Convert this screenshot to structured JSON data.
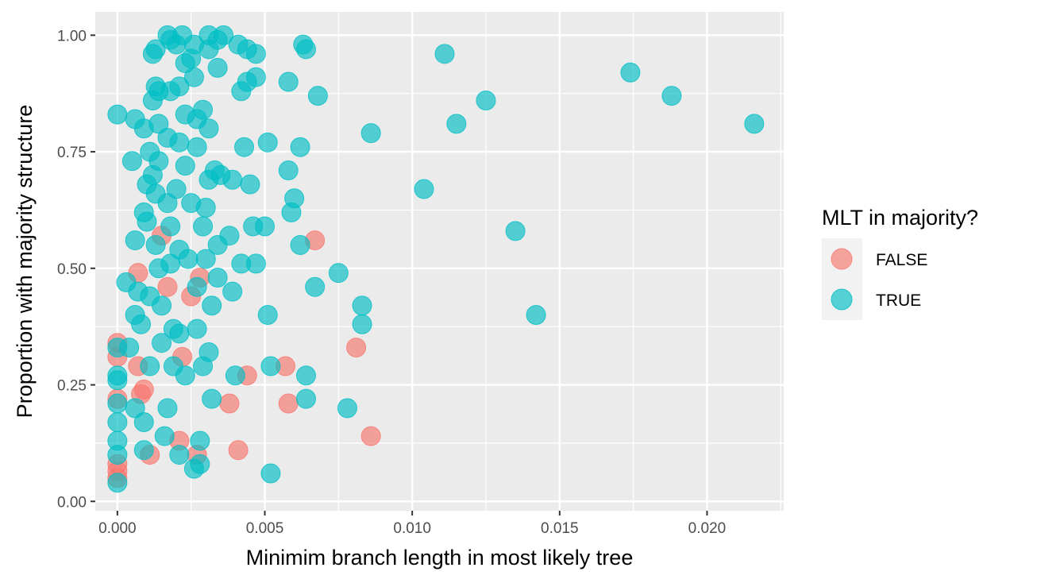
{
  "chart_data": {
    "type": "scatter",
    "title": "",
    "xlabel": "Minimim branch length in most likely tree",
    "ylabel": "Proportion with majority structure",
    "xlim": [
      -0.00075,
      0.0226
    ],
    "ylim": [
      -0.02,
      1.05
    ],
    "x_ticks": [
      0.0,
      0.005,
      0.01,
      0.015,
      0.02
    ],
    "x_tick_labels": [
      "0.000",
      "0.005",
      "0.010",
      "0.015",
      "0.020"
    ],
    "y_ticks": [
      0.0,
      0.25,
      0.5,
      0.75,
      1.0
    ],
    "y_tick_labels": [
      "0.00",
      "0.25",
      "0.50",
      "0.75",
      "1.00"
    ],
    "grid": true,
    "legend": {
      "title": "MLT in majority?",
      "position": "right",
      "entries": [
        "FALSE",
        "TRUE"
      ]
    },
    "series": [
      {
        "name": "FALSE",
        "color": "#F8766D",
        "points": [
          [
            0.0,
            0.34
          ],
          [
            0.0,
            0.31
          ],
          [
            0.0,
            0.22
          ],
          [
            0.0,
            0.08
          ],
          [
            0.0,
            0.065
          ],
          [
            0.0,
            0.05
          ],
          [
            0.0007,
            0.49
          ],
          [
            0.0007,
            0.29
          ],
          [
            0.0008,
            0.23
          ],
          [
            0.0009,
            0.24
          ],
          [
            0.0011,
            0.1
          ],
          [
            0.0015,
            0.57
          ],
          [
            0.0017,
            0.46
          ],
          [
            0.0021,
            0.13
          ],
          [
            0.0022,
            0.31
          ],
          [
            0.0025,
            0.44
          ],
          [
            0.0027,
            0.1
          ],
          [
            0.0028,
            0.48
          ],
          [
            0.0038,
            0.21
          ],
          [
            0.0041,
            0.11
          ],
          [
            0.0044,
            0.27
          ],
          [
            0.0057,
            0.29
          ],
          [
            0.0058,
            0.21
          ],
          [
            0.0067,
            0.56
          ],
          [
            0.0081,
            0.33
          ],
          [
            0.0086,
            0.14
          ]
        ]
      },
      {
        "name": "TRUE",
        "color": "#00BFC4",
        "points": [
          [
            0.0,
            0.83
          ],
          [
            0.0,
            0.33
          ],
          [
            0.0,
            0.27
          ],
          [
            0.0,
            0.26
          ],
          [
            0.0,
            0.21
          ],
          [
            0.0,
            0.17
          ],
          [
            0.0,
            0.13
          ],
          [
            0.0,
            0.1
          ],
          [
            0.0,
            0.04
          ],
          [
            0.0003,
            0.47
          ],
          [
            0.0004,
            0.33
          ],
          [
            0.0005,
            0.73
          ],
          [
            0.0006,
            0.82
          ],
          [
            0.0006,
            0.56
          ],
          [
            0.0006,
            0.4
          ],
          [
            0.0006,
            0.2
          ],
          [
            0.0007,
            0.45
          ],
          [
            0.0008,
            0.38
          ],
          [
            0.0009,
            0.8
          ],
          [
            0.0009,
            0.62
          ],
          [
            0.0009,
            0.17
          ],
          [
            0.0009,
            0.11
          ],
          [
            0.001,
            0.68
          ],
          [
            0.001,
            0.6
          ],
          [
            0.0011,
            0.75
          ],
          [
            0.0011,
            0.44
          ],
          [
            0.0011,
            0.29
          ],
          [
            0.0012,
            0.96
          ],
          [
            0.0012,
            0.86
          ],
          [
            0.0012,
            0.7
          ],
          [
            0.0013,
            0.97
          ],
          [
            0.0013,
            0.89
          ],
          [
            0.0013,
            0.66
          ],
          [
            0.0013,
            0.55
          ],
          [
            0.0014,
            0.88
          ],
          [
            0.0014,
            0.81
          ],
          [
            0.0014,
            0.73
          ],
          [
            0.0014,
            0.5
          ],
          [
            0.0015,
            0.42
          ],
          [
            0.0015,
            0.34
          ],
          [
            0.0016,
            0.14
          ],
          [
            0.0017,
            1.0
          ],
          [
            0.0017,
            0.78
          ],
          [
            0.0017,
            0.64
          ],
          [
            0.0017,
            0.2
          ],
          [
            0.0018,
            0.99
          ],
          [
            0.0018,
            0.88
          ],
          [
            0.0018,
            0.59
          ],
          [
            0.0018,
            0.51
          ],
          [
            0.0019,
            0.37
          ],
          [
            0.0019,
            0.29
          ],
          [
            0.002,
            0.98
          ],
          [
            0.002,
            0.67
          ],
          [
            0.0021,
            0.89
          ],
          [
            0.0021,
            0.77
          ],
          [
            0.0021,
            0.54
          ],
          [
            0.0021,
            0.36
          ],
          [
            0.0021,
            0.1
          ],
          [
            0.0022,
            1.0
          ],
          [
            0.0023,
            0.94
          ],
          [
            0.0023,
            0.83
          ],
          [
            0.0023,
            0.72
          ],
          [
            0.0023,
            0.27
          ],
          [
            0.0024,
            0.52
          ],
          [
            0.0025,
            0.95
          ],
          [
            0.0025,
            0.64
          ],
          [
            0.0026,
            0.98
          ],
          [
            0.0026,
            0.91
          ],
          [
            0.0026,
            0.07
          ],
          [
            0.0027,
            0.82
          ],
          [
            0.0027,
            0.76
          ],
          [
            0.0027,
            0.46
          ],
          [
            0.0027,
            0.37
          ],
          [
            0.0028,
            0.13
          ],
          [
            0.0028,
            0.08
          ],
          [
            0.0029,
            0.84
          ],
          [
            0.0029,
            0.59
          ],
          [
            0.0029,
            0.29
          ],
          [
            0.003,
            0.63
          ],
          [
            0.003,
            0.52
          ],
          [
            0.0031,
            1.0
          ],
          [
            0.0031,
            0.97
          ],
          [
            0.0031,
            0.8
          ],
          [
            0.0031,
            0.69
          ],
          [
            0.0031,
            0.32
          ],
          [
            0.0032,
            0.42
          ],
          [
            0.0032,
            0.22
          ],
          [
            0.0033,
            0.71
          ],
          [
            0.0034,
            0.99
          ],
          [
            0.0034,
            0.93
          ],
          [
            0.0034,
            0.55
          ],
          [
            0.0034,
            0.48
          ],
          [
            0.0035,
            0.7
          ],
          [
            0.0036,
            1.0
          ],
          [
            0.0038,
            0.57
          ],
          [
            0.0039,
            0.69
          ],
          [
            0.0039,
            0.45
          ],
          [
            0.004,
            0.27
          ],
          [
            0.0041,
            0.98
          ],
          [
            0.0042,
            0.88
          ],
          [
            0.0042,
            0.51
          ],
          [
            0.0043,
            0.76
          ],
          [
            0.0044,
            0.9
          ],
          [
            0.0044,
            0.97
          ],
          [
            0.0045,
            0.68
          ],
          [
            0.0046,
            0.59
          ],
          [
            0.0047,
            0.96
          ],
          [
            0.0047,
            0.91
          ],
          [
            0.0047,
            0.51
          ],
          [
            0.005,
            0.59
          ],
          [
            0.0051,
            0.77
          ],
          [
            0.0051,
            0.4
          ],
          [
            0.0052,
            0.29
          ],
          [
            0.0052,
            0.06
          ],
          [
            0.0058,
            0.9
          ],
          [
            0.0058,
            0.71
          ],
          [
            0.0059,
            0.62
          ],
          [
            0.006,
            0.65
          ],
          [
            0.0062,
            0.76
          ],
          [
            0.0062,
            0.55
          ],
          [
            0.0063,
            0.98
          ],
          [
            0.0064,
            0.97
          ],
          [
            0.0064,
            0.27
          ],
          [
            0.0064,
            0.22
          ],
          [
            0.0067,
            0.46
          ],
          [
            0.0068,
            0.87
          ],
          [
            0.0075,
            0.49
          ],
          [
            0.0078,
            0.2
          ],
          [
            0.0083,
            0.42
          ],
          [
            0.0083,
            0.38
          ],
          [
            0.0086,
            0.79
          ],
          [
            0.0104,
            0.67
          ],
          [
            0.0111,
            0.96
          ],
          [
            0.0115,
            0.81
          ],
          [
            0.0125,
            0.86
          ],
          [
            0.0135,
            0.58
          ],
          [
            0.0142,
            0.4
          ],
          [
            0.0174,
            0.92
          ],
          [
            0.0188,
            0.87
          ],
          [
            0.0216,
            0.81
          ]
        ]
      }
    ]
  }
}
